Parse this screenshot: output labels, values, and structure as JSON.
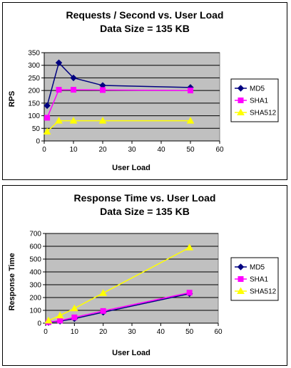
{
  "chart_data": [
    {
      "type": "line",
      "title": "Requests / Second  vs.  User Load",
      "subtitle": "Data Size = 135 KB",
      "xlabel": "User Load",
      "ylabel": "RPS",
      "xlim": [
        0,
        60
      ],
      "ylim": [
        0,
        350
      ],
      "xticks": [
        0,
        10,
        20,
        30,
        40,
        50,
        60
      ],
      "yticks": [
        0,
        50,
        100,
        150,
        200,
        250,
        300,
        350
      ],
      "grid": true,
      "legend_position": "right",
      "plot_bg": "#c0c0c0",
      "series": [
        {
          "name": "MD5",
          "color": "#000080",
          "marker": "diamond",
          "x": [
            1,
            5,
            10,
            20,
            50
          ],
          "y": [
            140,
            310,
            250,
            220,
            212
          ]
        },
        {
          "name": "SHA1",
          "color": "#ff00ff",
          "marker": "square",
          "x": [
            1,
            5,
            10,
            20,
            50
          ],
          "y": [
            92,
            203,
            203,
            202,
            200
          ]
        },
        {
          "name": "SHA512",
          "color": "#ffff00",
          "marker": "triangle",
          "x": [
            1,
            5,
            10,
            20,
            50
          ],
          "y": [
            37,
            80,
            80,
            80,
            80
          ]
        }
      ]
    },
    {
      "type": "line",
      "title": "Response Time  vs.  User Load",
      "subtitle": "Data Size = 135 KB",
      "xlabel": "User Load",
      "ylabel": "Response Time",
      "xlim": [
        0,
        60
      ],
      "ylim": [
        0,
        700
      ],
      "xticks": [
        0,
        10,
        20,
        30,
        40,
        50,
        60
      ],
      "yticks": [
        0,
        100,
        200,
        300,
        400,
        500,
        600,
        700
      ],
      "grid": true,
      "legend_position": "right",
      "plot_bg": "#c0c0c0",
      "series": [
        {
          "name": "MD5",
          "color": "#000080",
          "marker": "diamond",
          "x": [
            1,
            5,
            10,
            20,
            50
          ],
          "y": [
            5,
            15,
            35,
            85,
            230
          ]
        },
        {
          "name": "SHA1",
          "color": "#ff00ff",
          "marker": "square",
          "x": [
            1,
            5,
            10,
            20,
            50
          ],
          "y": [
            8,
            20,
            45,
            95,
            238
          ]
        },
        {
          "name": "SHA512",
          "color": "#ffff00",
          "marker": "triangle",
          "x": [
            1,
            5,
            10,
            20,
            50
          ],
          "y": [
            20,
            60,
            115,
            235,
            590
          ]
        }
      ]
    }
  ]
}
